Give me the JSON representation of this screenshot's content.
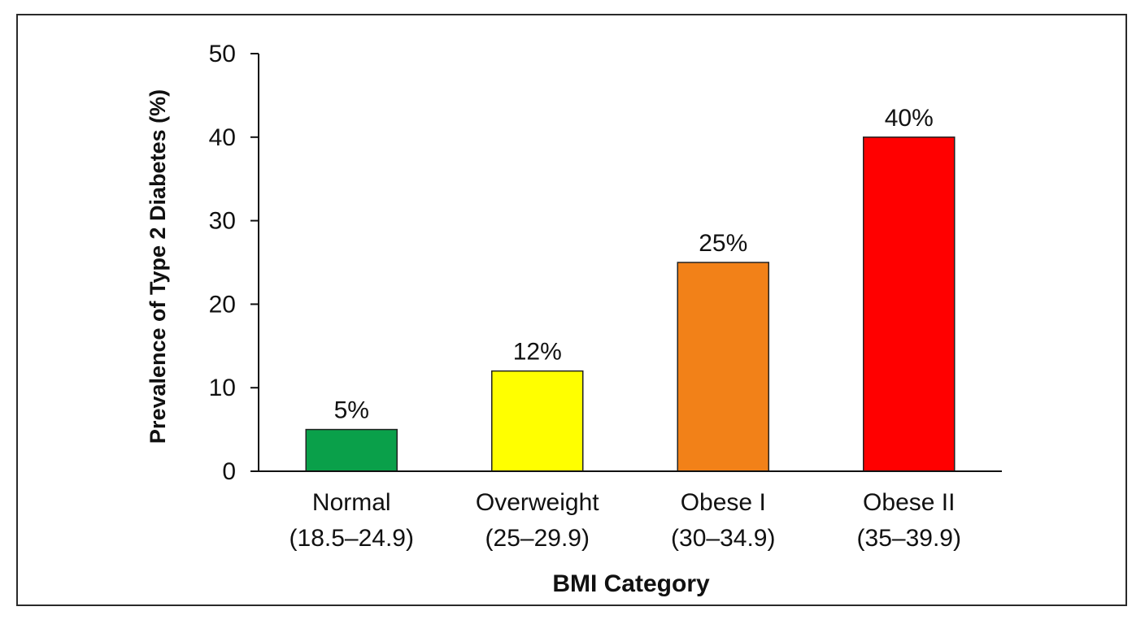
{
  "chart_data": {
    "type": "bar",
    "categories": [
      {
        "name": "Normal",
        "range": "(18.5–24.9)"
      },
      {
        "name": "Overweight",
        "range": "(25–29.9)"
      },
      {
        "name": "Obese I",
        "range": "(30–34.9)"
      },
      {
        "name": "Obese II",
        "range": "(35–39.9)"
      }
    ],
    "values": [
      5,
      12,
      25,
      40
    ],
    "data_labels": [
      "5%",
      "12%",
      "25%",
      "40%"
    ],
    "colors": [
      "#0aa04a",
      "#ffff00",
      "#f28118",
      "#ff0000"
    ],
    "xlabel": "BMI Category",
    "ylabel": "Prevalence of Type 2 Diabetes (%)",
    "ylim": [
      0,
      50
    ],
    "yticks": [
      0,
      10,
      20,
      30,
      40,
      50
    ],
    "grid": false,
    "legend": "none"
  }
}
